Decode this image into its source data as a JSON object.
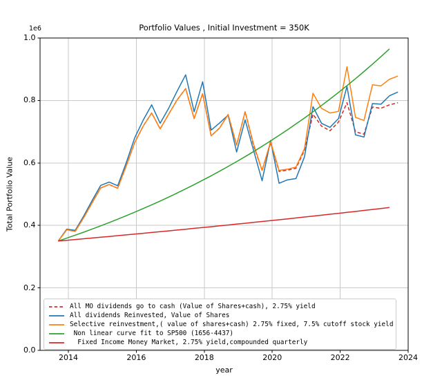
{
  "figure": {
    "title": "Portfolio Values , Initial Investment = 350K",
    "xlabel": "year",
    "ylabel": "Total Portfolio Value",
    "y_offset_text": "1e6"
  },
  "chart_data": {
    "type": "line",
    "title": "Portfolio Values , Initial Investment = 350K",
    "xlabel": "year",
    "ylabel": "Total Portfolio Value",
    "xlim": [
      2013.166,
      2024.0
    ],
    "ylim": [
      0,
      1000000
    ],
    "xticks": [
      2014,
      2016,
      2018,
      2020,
      2022,
      2024
    ],
    "yticks": [
      0,
      200000,
      400000,
      600000,
      800000,
      1000000
    ],
    "ytick_labels": [
      "0.0",
      "0.2",
      "0.4",
      "0.6",
      "0.8",
      "1.0"
    ],
    "y_offset_text": "1e6",
    "grid": true,
    "legend_position": "lower left",
    "colors": {
      "blue": "#1f77b4",
      "orange": "#ff7f0e",
      "green": "#2ca02c",
      "red": "#d62728",
      "grid": "#c8c8c8",
      "spine": "#000000"
    },
    "x": [
      2013.7,
      2013.95,
      2014.2,
      2014.45,
      2014.7,
      2014.95,
      2015.2,
      2015.45,
      2015.7,
      2015.95,
      2016.2,
      2016.45,
      2016.7,
      2016.95,
      2017.2,
      2017.45,
      2017.7,
      2017.95,
      2018.2,
      2018.45,
      2018.7,
      2018.95,
      2019.2,
      2019.45,
      2019.7,
      2019.95,
      2020.2,
      2020.45,
      2020.7,
      2020.95,
      2021.2,
      2021.45,
      2021.7,
      2021.95,
      2022.2,
      2022.45,
      2022.7,
      2022.95,
      2023.2,
      2023.45,
      2023.7
    ],
    "series": [
      {
        "name": "All MO dividends go to cash (Value of Shares+cash), 2.75% yield",
        "color": "#d62728",
        "style": "dashed",
        "values": [
          350000,
          386000,
          381000,
          425000,
          473000,
          520000,
          531000,
          519000,
          590000,
          665000,
          718000,
          760000,
          709000,
          756000,
          802000,
          838000,
          742000,
          822000,
          687000,
          712000,
          755000,
          657000,
          764000,
          655000,
          576000,
          665000,
          573000,
          577000,
          583000,
          641000,
          756000,
          718000,
          703000,
          731000,
          793000,
          700000,
          692000,
          779000,
          775000,
          786000,
          793000
        ]
      },
      {
        "name": "All dividends Reinvested, Value of Shares",
        "color": "#1f77b4",
        "style": "solid",
        "values": [
          350000,
          388000,
          384000,
          430000,
          480000,
          528000,
          539000,
          527000,
          600000,
          680000,
          737000,
          786000,
          727000,
          775000,
          830000,
          882000,
          764000,
          860000,
          705000,
          728000,
          753000,
          635000,
          738000,
          640000,
          543000,
          672000,
          535000,
          546000,
          550000,
          620000,
          780000,
          727000,
          714000,
          742000,
          845000,
          690000,
          683000,
          790000,
          788000,
          815000,
          827000
        ]
      },
      {
        "name": "Selective reinvestment,( value of shares+cash) 2.75% fixed, 7.5% cutoff stock yield",
        "color": "#ff7f0e",
        "style": "solid",
        "values": [
          350000,
          386000,
          381000,
          425000,
          473000,
          520000,
          531000,
          519000,
          590000,
          665000,
          718000,
          760000,
          709000,
          756000,
          802000,
          838000,
          742000,
          822000,
          687000,
          712000,
          755000,
          657000,
          764000,
          660000,
          576000,
          668000,
          576000,
          580000,
          587000,
          646000,
          823000,
          775000,
          760000,
          765000,
          908000,
          746000,
          736000,
          850000,
          847000,
          868000,
          878000
        ]
      },
      {
        "name": " Non linear curve fit to SP500 (1656-4437)",
        "color": "#2ca02c",
        "style": "solid",
        "values": [
          350000,
          359200,
          368700,
          378400,
          388400,
          398600,
          409100,
          419900,
          430900,
          442300,
          453900,
          465900,
          478200,
          490800,
          503700,
          517000,
          530600,
          544600,
          558900,
          573700,
          588800,
          604300,
          620200,
          636600,
          653400,
          670600,
          688300,
          706400,
          725000,
          744100,
          763700,
          783900,
          804500,
          825700,
          847500,
          869800,
          892700,
          916200,
          940400,
          965100,
          null
        ]
      },
      {
        "name": "  Fixed Income Money Market, 2.75% yield,compounded quarterly",
        "color": "#d62728",
        "style": "solid",
        "values": [
          350000,
          352400,
          354800,
          357300,
          359700,
          362200,
          364700,
          367200,
          369700,
          372300,
          374800,
          377400,
          380000,
          382600,
          385200,
          387900,
          390600,
          393200,
          395900,
          398700,
          401400,
          404200,
          406900,
          409700,
          412600,
          415400,
          418200,
          421100,
          424000,
          426900,
          429900,
          432800,
          435800,
          438800,
          441800,
          444800,
          447900,
          451000,
          454100,
          457200,
          null
        ]
      }
    ]
  }
}
